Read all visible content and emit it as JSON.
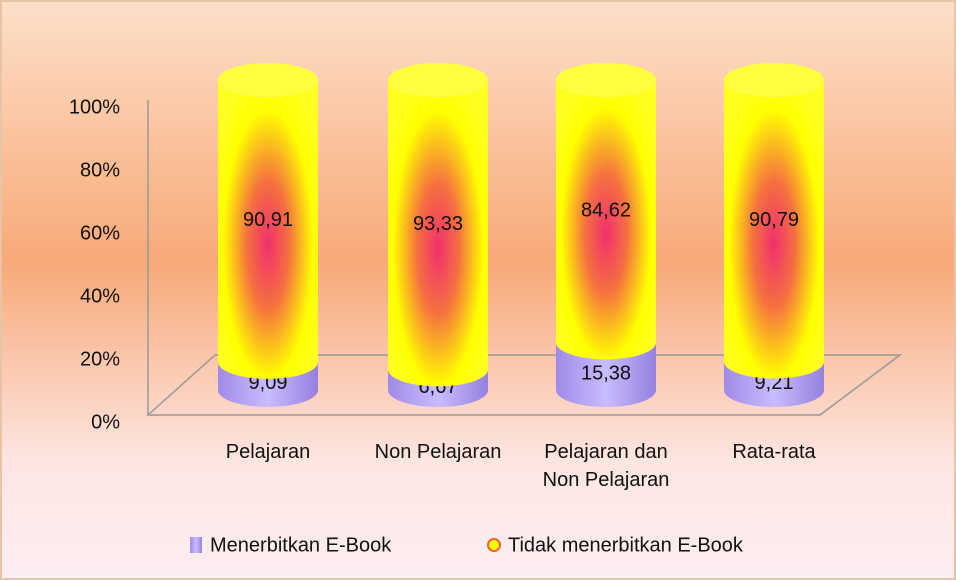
{
  "chart_data": {
    "type": "stacked-cylinder",
    "categories": [
      "Pelajaran",
      "Non Pelajaran",
      "Pelajaran dan Non Pelajaran",
      "Rata-rata"
    ],
    "series": [
      {
        "name": "Menerbitkan E-Book",
        "color": "#a58ff0",
        "values": [
          9.09,
          6.67,
          15.38,
          9.21
        ],
        "value_labels": [
          "9,09",
          "6,67",
          "15,38",
          "9,21"
        ]
      },
      {
        "name": "Tidak menerbitkan E-Book",
        "color": "#ffff00",
        "values": [
          90.91,
          93.33,
          84.62,
          90.79
        ],
        "value_labels": [
          "90,91",
          "93,33",
          "84,62",
          "90,79"
        ]
      }
    ],
    "ylim": [
      0,
      100
    ],
    "yticks": [
      {
        "value": 0,
        "label": "0%"
      },
      {
        "value": 20,
        "label": "20%"
      },
      {
        "value": 40,
        "label": "40%"
      },
      {
        "value": 60,
        "label": "60%"
      },
      {
        "value": 80,
        "label": "80%"
      },
      {
        "value": 100,
        "label": "100%"
      }
    ]
  }
}
